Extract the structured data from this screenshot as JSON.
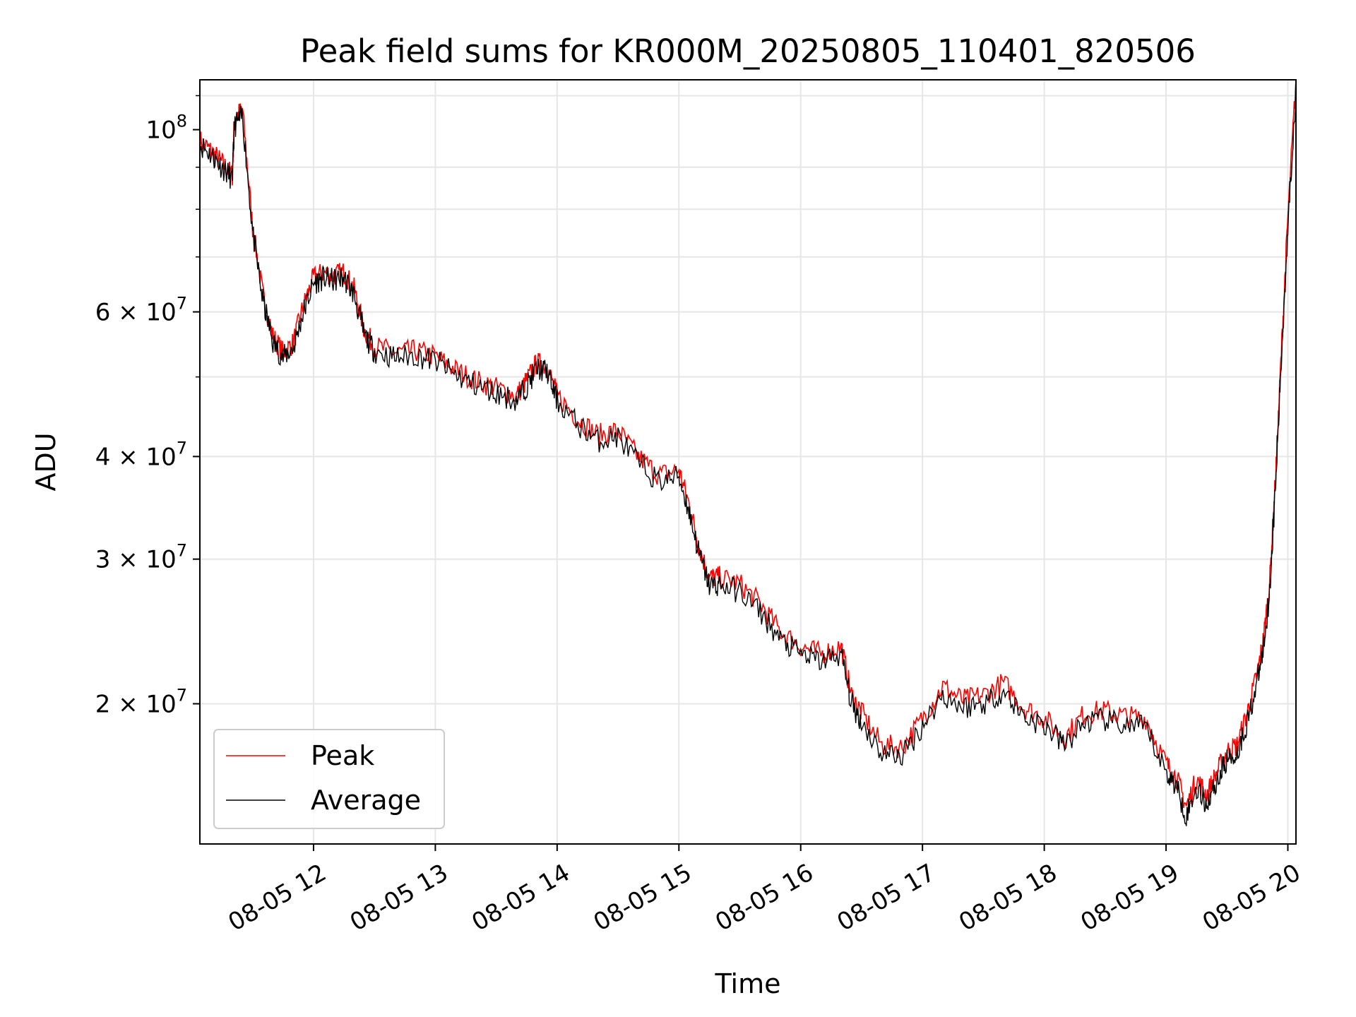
{
  "chart_data": {
    "type": "line",
    "title": "Peak field sums for KR000M_20250805_110401_820506",
    "xlabel": "Time",
    "ylabel": "ADU",
    "yscale": "log",
    "xlim": [
      "08-05 11:04",
      "08-05 20:04"
    ],
    "ylim": [
      13500000,
      115000000
    ],
    "x_ticks": [
      "08-05 12",
      "08-05 13",
      "08-05 14",
      "08-05 15",
      "08-05 16",
      "08-05 17",
      "08-05 18",
      "08-05 19",
      "08-05 20"
    ],
    "y_ticks": [
      {
        "value": 100000000,
        "base": "10",
        "exp": "8"
      },
      {
        "value": 60000000,
        "base": "6 × 10",
        "exp": "7"
      },
      {
        "value": 40000000,
        "base": "4 × 10",
        "exp": "7"
      },
      {
        "value": 30000000,
        "base": "3 × 10",
        "exp": "7"
      },
      {
        "value": 20000000,
        "base": "2 × 10",
        "exp": "7"
      }
    ],
    "grid": true,
    "legend_position": "lower-left",
    "series": [
      {
        "name": "Peak",
        "color": "#ff0000"
      },
      {
        "name": "Average",
        "color": "#000000"
      }
    ],
    "x": [
      "08-05 11:04",
      "08-05 11:10",
      "08-05 11:15",
      "08-05 11:20",
      "08-05 11:21",
      "08-05 11:25",
      "08-05 11:30",
      "08-05 11:35",
      "08-05 11:40",
      "08-05 11:45",
      "08-05 11:50",
      "08-05 11:55",
      "08-05 12:00",
      "08-05 12:05",
      "08-05 12:10",
      "08-05 12:15",
      "08-05 12:20",
      "08-05 12:25",
      "08-05 12:30",
      "08-05 12:40",
      "08-05 12:50",
      "08-05 13:00",
      "08-05 13:10",
      "08-05 13:20",
      "08-05 13:30",
      "08-05 13:40",
      "08-05 13:45",
      "08-05 13:50",
      "08-05 13:55",
      "08-05 14:00",
      "08-05 14:10",
      "08-05 14:20",
      "08-05 14:30",
      "08-05 14:40",
      "08-05 14:50",
      "08-05 15:00",
      "08-05 15:05",
      "08-05 15:10",
      "08-05 15:15",
      "08-05 15:20",
      "08-05 15:30",
      "08-05 15:40",
      "08-05 15:50",
      "08-05 16:00",
      "08-05 16:10",
      "08-05 16:20",
      "08-05 16:25",
      "08-05 16:30",
      "08-05 16:40",
      "08-05 16:50",
      "08-05 17:00",
      "08-05 17:10",
      "08-05 17:20",
      "08-05 17:30",
      "08-05 17:40",
      "08-05 17:50",
      "08-05 18:00",
      "08-05 18:10",
      "08-05 18:20",
      "08-05 18:30",
      "08-05 18:40",
      "08-05 18:50",
      "08-05 19:00",
      "08-05 19:05",
      "08-05 19:10",
      "08-05 19:15",
      "08-05 19:20",
      "08-05 19:25",
      "08-05 19:30",
      "08-05 19:35",
      "08-05 19:40",
      "08-05 19:45",
      "08-05 19:48",
      "08-05 19:51",
      "08-05 19:54",
      "08-05 19:57",
      "08-05 20:00",
      "08-05 20:04"
    ],
    "peak": [
      97000000,
      94000000,
      91000000,
      88000000,
      103000000,
      106000000,
      76000000,
      63000000,
      56000000,
      53500000,
      55000000,
      61000000,
      66000000,
      67000000,
      66500000,
      67000000,
      64000000,
      57000000,
      54500000,
      53500000,
      53800000,
      53000000,
      51000000,
      49500000,
      48500000,
      47500000,
      49500000,
      52000000,
      51500000,
      47500000,
      44500000,
      42500000,
      43000000,
      40000000,
      38000000,
      38500000,
      35000000,
      31000000,
      28500000,
      28500000,
      28000000,
      26500000,
      24500000,
      23500000,
      23000000,
      23500000,
      20500000,
      19500000,
      17800000,
      17700000,
      19200000,
      21000000,
      20200000,
      20500000,
      21200000,
      19800000,
      19200000,
      18200000,
      19500000,
      19600000,
      19300000,
      19200000,
      16900000,
      16300000,
      15000000,
      16200000,
      15500000,
      16500000,
      17500000,
      17800000,
      19500000,
      21800000,
      24000000,
      28000000,
      38000000,
      55000000,
      78000000,
      115000000
    ],
    "average": [
      96000000,
      93000000,
      90000000,
      87000000,
      101000000,
      104000000,
      75000000,
      62000000,
      55000000,
      52800000,
      54200000,
      60000000,
      65000000,
      66000000,
      65500000,
      66000000,
      63000000,
      56200000,
      53800000,
      52800000,
      53100000,
      52300000,
      50300000,
      48800000,
      47800000,
      46800000,
      48800000,
      51200000,
      50800000,
      46800000,
      43800000,
      41800000,
      42300000,
      39300000,
      37300000,
      37800000,
      34300000,
      30400000,
      27900000,
      27900000,
      27400000,
      25900000,
      23900000,
      23000000,
      22500000,
      23000000,
      20000000,
      19000000,
      17400000,
      17300000,
      18800000,
      20500000,
      19800000,
      20000000,
      20700000,
      19300000,
      18800000,
      17800000,
      19000000,
      19100000,
      18800000,
      18700000,
      16500000,
      15900000,
      14600000,
      15800000,
      15100000,
      16100000,
      17100000,
      17400000,
      19000000,
      21300000,
      23400000,
      27300000,
      37000000,
      53500000,
      76000000,
      112000000
    ]
  }
}
